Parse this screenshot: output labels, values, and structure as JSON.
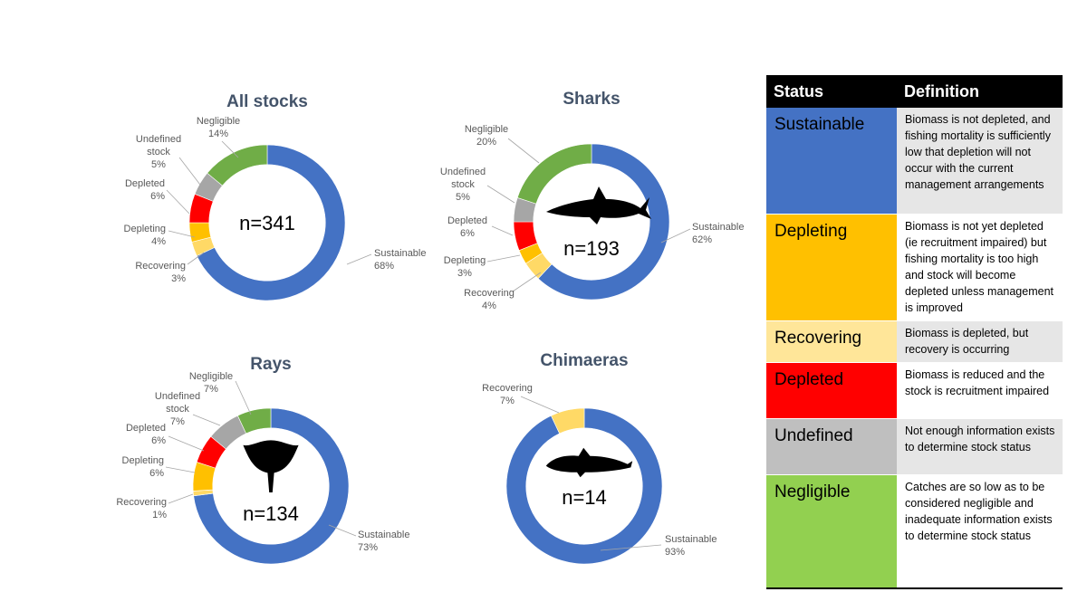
{
  "chart_data": [
    {
      "type": "pie",
      "title": "All stocks",
      "center_label": "n=341",
      "icon": "",
      "categories": [
        "Sustainable",
        "Recovering",
        "Depleting",
        "Depleted",
        "Undefined stock",
        "Negligible"
      ],
      "values": [
        68,
        3,
        4,
        6,
        5,
        14
      ],
      "labels": [
        {
          "category": "Sustainable",
          "value_text": "68%"
        },
        {
          "category": "Recovering",
          "value_text": "3%"
        },
        {
          "category": "Depleting",
          "value_text": "4%"
        },
        {
          "category": "Depleted",
          "value_text": "6%"
        },
        {
          "category": "Undefined\nstock",
          "value_text": "5%"
        },
        {
          "category": "Negligible",
          "value_text": "14%"
        }
      ]
    },
    {
      "type": "pie",
      "title": "Sharks",
      "center_label": "n=193",
      "icon": "shark-silhouette-icon",
      "categories": [
        "Sustainable",
        "Recovering",
        "Depleting",
        "Depleted",
        "Undefined stock",
        "Negligible"
      ],
      "values": [
        62,
        4,
        3,
        6,
        5,
        20
      ],
      "labels": [
        {
          "category": "Sustainable",
          "value_text": "62%"
        },
        {
          "category": "Recovering",
          "value_text": "4%"
        },
        {
          "category": "Depleting",
          "value_text": "3%"
        },
        {
          "category": "Depleted",
          "value_text": "6%"
        },
        {
          "category": "Undefined\nstock",
          "value_text": "5%"
        },
        {
          "category": "Negligible",
          "value_text": "20%"
        }
      ]
    },
    {
      "type": "pie",
      "title": "Rays",
      "center_label": "n=134",
      "icon": "ray-silhouette-icon",
      "categories": [
        "Sustainable",
        "Recovering",
        "Depleting",
        "Depleted",
        "Undefined stock",
        "Negligible"
      ],
      "values": [
        73,
        1,
        6,
        6,
        7,
        7
      ],
      "labels": [
        {
          "category": "Sustainable",
          "value_text": "73%"
        },
        {
          "category": "Recovering",
          "value_text": "1%"
        },
        {
          "category": "Depleting",
          "value_text": "6%"
        },
        {
          "category": "Depleted",
          "value_text": "6%"
        },
        {
          "category": "Undefined\nstock",
          "value_text": "7%"
        },
        {
          "category": "Negligible",
          "value_text": "7%"
        }
      ]
    },
    {
      "type": "pie",
      "title": "Chimaeras",
      "center_label": "n=14",
      "icon": "chimaera-silhouette-icon",
      "categories": [
        "Sustainable",
        "Recovering"
      ],
      "values": [
        93,
        7
      ],
      "labels": [
        {
          "category": "Sustainable",
          "value_text": "93%"
        },
        {
          "category": "Recovering",
          "value_text": "7%"
        }
      ]
    }
  ],
  "colors": {
    "Sustainable": "#4472c4",
    "Depleting": "#ffc000",
    "Recovering": "#ffd966",
    "Depleted": "#ff0000",
    "Undefined": "#a6a6a6",
    "Negligible": "#70ad47"
  },
  "table": {
    "header_status": "Status",
    "header_definition": "Definition",
    "rows": [
      {
        "status": "Sustainable",
        "color": "#4472c4",
        "definition": "Biomass is not depleted, and fishing mortality is sufficiently low that depletion will not occur with the current management arrangements"
      },
      {
        "status": "Depleting",
        "color": "#ffc000",
        "definition": "Biomass is not yet depleted (ie recruitment impaired) but fishing mortality is too high and stock will become depleted unless management is improved"
      },
      {
        "status": "Recovering",
        "color": "#ffe699",
        "definition": "Biomass is depleted, but recovery is occurring"
      },
      {
        "status": "Depleted",
        "color": "#ff0000",
        "definition": "Biomass is reduced and the stock is recruitment impaired"
      },
      {
        "status": "Undefined",
        "color": "#bfbfbf",
        "definition": "Not enough information exists to determine stock status"
      },
      {
        "status": "Negligible",
        "color": "#92d050",
        "definition": "Catches are so low as to be considered negligible and inadequate information exists to determine stock status"
      }
    ]
  }
}
